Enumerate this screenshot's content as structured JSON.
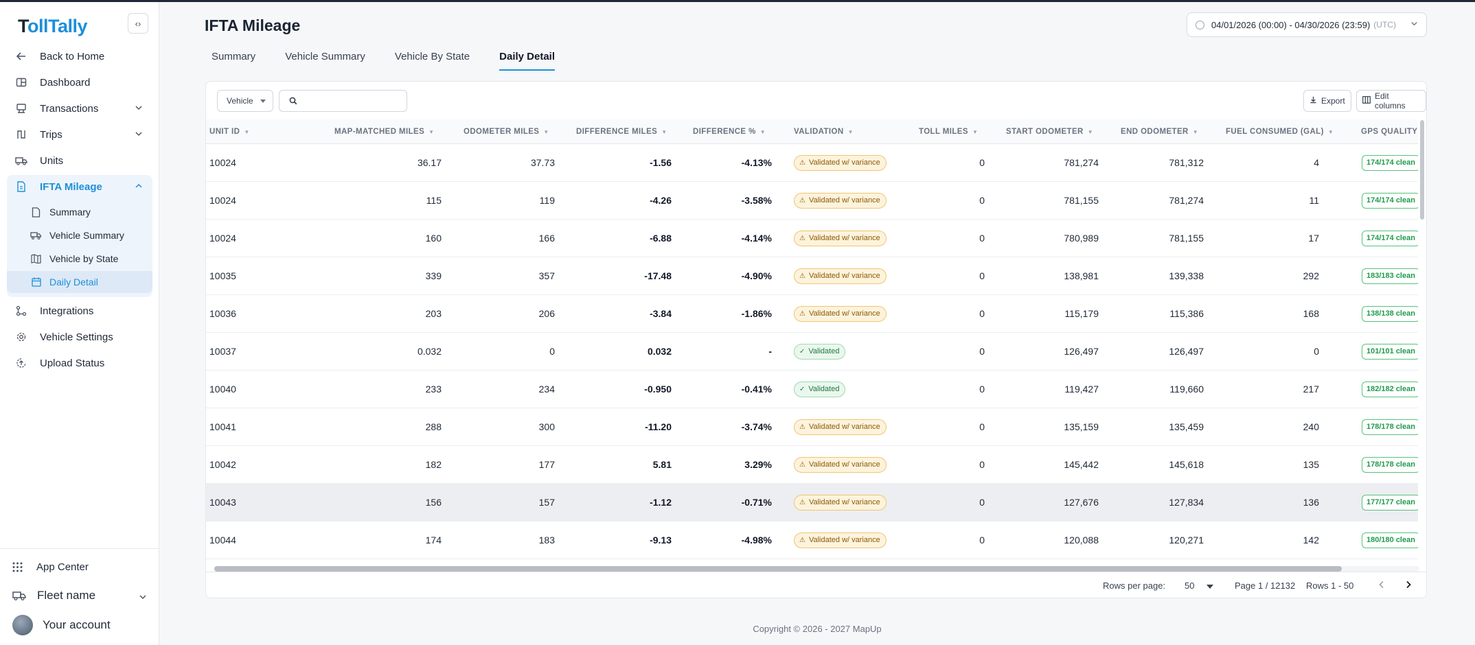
{
  "app": {
    "logo_prefix": "T",
    "logo_rest": "ollTally",
    "collapse_icon": "‹›"
  },
  "sidebar": {
    "back_label": "Back to Home",
    "items": [
      {
        "label": "Dashboard"
      },
      {
        "label": "Transactions"
      },
      {
        "label": "Trips"
      },
      {
        "label": "Units"
      },
      {
        "label": "IFTA Mileage"
      },
      {
        "label": "Integrations"
      },
      {
        "label": "Vehicle Settings"
      },
      {
        "label": "Upload Status"
      }
    ],
    "ifta_sub": [
      {
        "label": "Summary"
      },
      {
        "label": "Vehicle Summary"
      },
      {
        "label": "Vehicle by State"
      },
      {
        "label": "Daily Detail"
      }
    ],
    "app_center": "App Center",
    "fleet_name": "Fleet name",
    "account": "Your account"
  },
  "header": {
    "title": "IFTA Mileage",
    "date_range": "04/01/2026 (00:00) - 04/30/2026 (23:59)",
    "timezone": "(UTC)"
  },
  "tabs": [
    "Summary",
    "Vehicle Summary",
    "Vehicle By State",
    "Daily Detail"
  ],
  "toolbar": {
    "filter_select": "Vehicle",
    "search_placeholder": "",
    "export_label": "Export",
    "edit_columns_label": "Edit columns"
  },
  "table": {
    "columns": [
      "UNIT ID",
      "MAP-MATCHED MILES",
      "ODOMETER MILES",
      "DIFFERENCE MILES",
      "DIFFERENCE %",
      "VALIDATION",
      "TOLL MILES",
      "START ODOMETER",
      "END ODOMETER",
      "FUEL CONSUMED (GAL)",
      "GPS QUALITY"
    ],
    "rows": [
      {
        "unit": "10024",
        "map": "36.17",
        "odo": "37.73",
        "diff": "-1.56",
        "pct": "-4.13%",
        "validation": "Validated w/ variance",
        "status": "warn",
        "toll": "0",
        "start": "781,274",
        "end": "781,312",
        "fuel": "4",
        "gps": "174/174 clean"
      },
      {
        "unit": "10024",
        "map": "115",
        "odo": "119",
        "diff": "-4.26",
        "pct": "-3.58%",
        "validation": "Validated w/ variance",
        "status": "warn",
        "toll": "0",
        "start": "781,155",
        "end": "781,274",
        "fuel": "11",
        "gps": "174/174 clean"
      },
      {
        "unit": "10024",
        "map": "160",
        "odo": "166",
        "diff": "-6.88",
        "pct": "-4.14%",
        "validation": "Validated w/ variance",
        "status": "warn",
        "toll": "0",
        "start": "780,989",
        "end": "781,155",
        "fuel": "17",
        "gps": "174/174 clean"
      },
      {
        "unit": "10035",
        "map": "339",
        "odo": "357",
        "diff": "-17.48",
        "pct": "-4.90%",
        "validation": "Validated w/ variance",
        "status": "warn",
        "toll": "0",
        "start": "138,981",
        "end": "139,338",
        "fuel": "292",
        "gps": "183/183 clean"
      },
      {
        "unit": "10036",
        "map": "203",
        "odo": "206",
        "diff": "-3.84",
        "pct": "-1.86%",
        "validation": "Validated w/ variance",
        "status": "warn",
        "toll": "0",
        "start": "115,179",
        "end": "115,386",
        "fuel": "168",
        "gps": "138/138 clean"
      },
      {
        "unit": "10037",
        "map": "0.032",
        "odo": "0",
        "diff": "0.032",
        "pct": "-",
        "validation": "Validated",
        "status": "ok",
        "toll": "0",
        "start": "126,497",
        "end": "126,497",
        "fuel": "0",
        "gps": "101/101 clean"
      },
      {
        "unit": "10040",
        "map": "233",
        "odo": "234",
        "diff": "-0.950",
        "pct": "-0.41%",
        "validation": "Validated",
        "status": "ok",
        "toll": "0",
        "start": "119,427",
        "end": "119,660",
        "fuel": "217",
        "gps": "182/182 clean"
      },
      {
        "unit": "10041",
        "map": "288",
        "odo": "300",
        "diff": "-11.20",
        "pct": "-3.74%",
        "validation": "Validated w/ variance",
        "status": "warn",
        "toll": "0",
        "start": "135,159",
        "end": "135,459",
        "fuel": "240",
        "gps": "178/178 clean"
      },
      {
        "unit": "10042",
        "map": "182",
        "odo": "177",
        "diff": "5.81",
        "pct": "3.29%",
        "validation": "Validated w/ variance",
        "status": "warn",
        "toll": "0",
        "start": "145,442",
        "end": "145,618",
        "fuel": "135",
        "gps": "178/178 clean"
      },
      {
        "unit": "10043",
        "map": "156",
        "odo": "157",
        "diff": "-1.12",
        "pct": "-0.71%",
        "validation": "Validated w/ variance",
        "status": "warn",
        "toll": "0",
        "start": "127,676",
        "end": "127,834",
        "fuel": "136",
        "gps": "177/177 clean"
      },
      {
        "unit": "10044",
        "map": "174",
        "odo": "183",
        "diff": "-9.13",
        "pct": "-4.98%",
        "validation": "Validated w/ variance",
        "status": "warn",
        "toll": "0",
        "start": "120,088",
        "end": "120,271",
        "fuel": "142",
        "gps": "180/180 clean"
      }
    ],
    "highlighted_row_index": 9
  },
  "pagination": {
    "rows_per_page_label": "Rows per page:",
    "rows_per_page": "50",
    "page": "Page 1 / 12132",
    "rows": "Rows 1 - 50"
  },
  "footer": {
    "copyright": "Copyright © 2026 - 2027 MapUp"
  },
  "colors": {
    "accent": "#1d8fd8",
    "warn_bg": "#fdf3dc",
    "ok_bg": "#eaf7ee",
    "gps_green": "#1e9b4a"
  }
}
